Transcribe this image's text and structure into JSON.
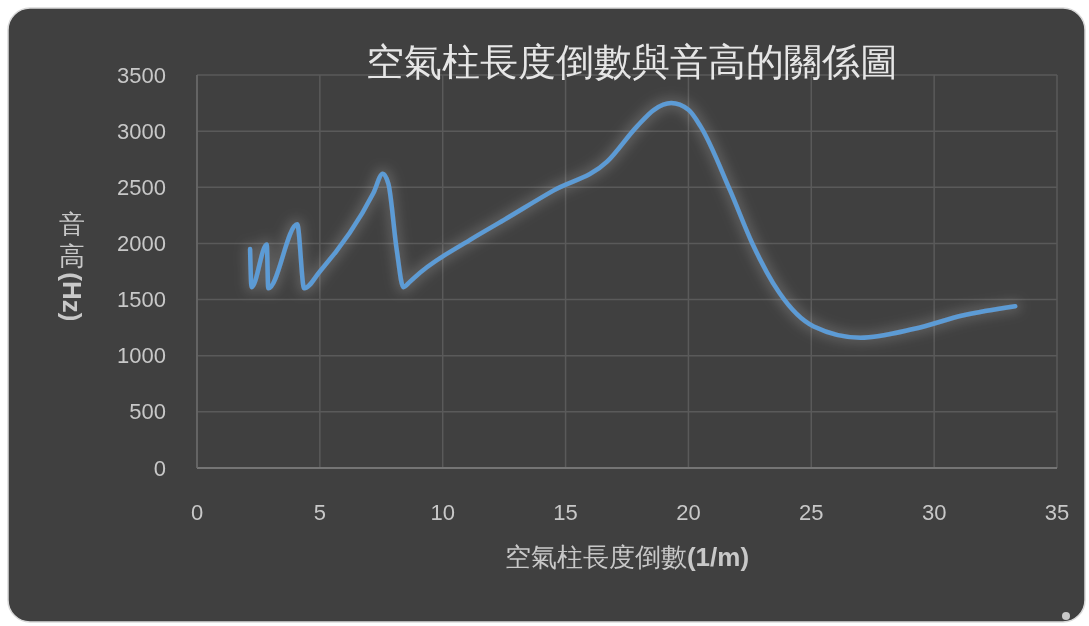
{
  "chart_data": {
    "type": "line",
    "title": "空氣柱長度倒數與音高的關係圖",
    "xlabel": "空氣柱長度倒數(1/m)",
    "ylabel": "音高(Hz)",
    "x": [
      2.16,
      2.22,
      2.84,
      2.9,
      4.08,
      4.36,
      5.0,
      7.18,
      7.56,
      7.79,
      8.13,
      8.4,
      8.67,
      9.08,
      11.1,
      12.5,
      14.5,
      16.7,
      17.9,
      18.6,
      19.3,
      20.0,
      20.5,
      21.7,
      22.6,
      23.7,
      25.1,
      27.0,
      29.2,
      31.2,
      33.3
    ],
    "series": [
      {
        "color": "#5b9bd5",
        "values": [
          1950,
          1610,
          1990,
          1600,
          2170,
          1600,
          1750,
          2450,
          2620,
          2530,
          1940,
          1610,
          1660,
          1740,
          2030,
          2210,
          2470,
          2730,
          3040,
          3190,
          3250,
          3190,
          3040,
          2470,
          2000,
          1560,
          1260,
          1160,
          1240,
          1360,
          1440
        ]
      }
    ],
    "xlim": [
      0,
      35
    ],
    "xticks": [
      0,
      5,
      10,
      15,
      20,
      25,
      30,
      35
    ],
    "ylim": [
      0,
      3500
    ],
    "yticks": [
      0,
      500,
      1000,
      1500,
      2000,
      2500,
      3000,
      3500
    ],
    "grid": true
  }
}
